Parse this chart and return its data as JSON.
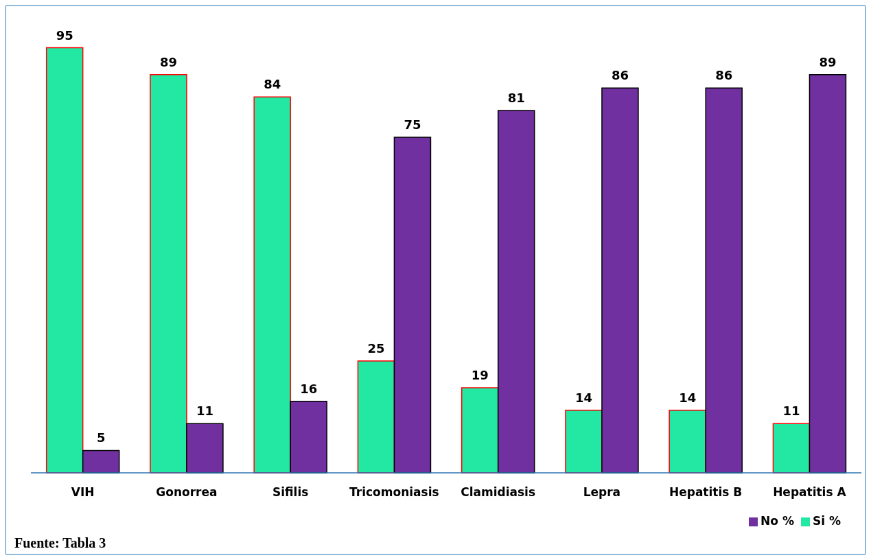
{
  "chart_data": {
    "type": "bar",
    "categories": [
      "VIH",
      "Gonorrea",
      "Sifilis",
      "Tricomoniasis",
      "Clamidiasis",
      "Lepra",
      "Hepatitis B",
      "Hepatitis A"
    ],
    "series": [
      {
        "name": "Si %",
        "color": "#22e8a4",
        "values": [
          95,
          89,
          84,
          25,
          19,
          14,
          14,
          11
        ]
      },
      {
        "name": "No %",
        "color": "#7030a0",
        "values": [
          5,
          11,
          16,
          75,
          81,
          86,
          86,
          89
        ]
      }
    ],
    "data_labels": true,
    "legend": "bottom right",
    "grid": false,
    "annotations": [
      "Fuente: Tabla 3"
    ]
  }
}
